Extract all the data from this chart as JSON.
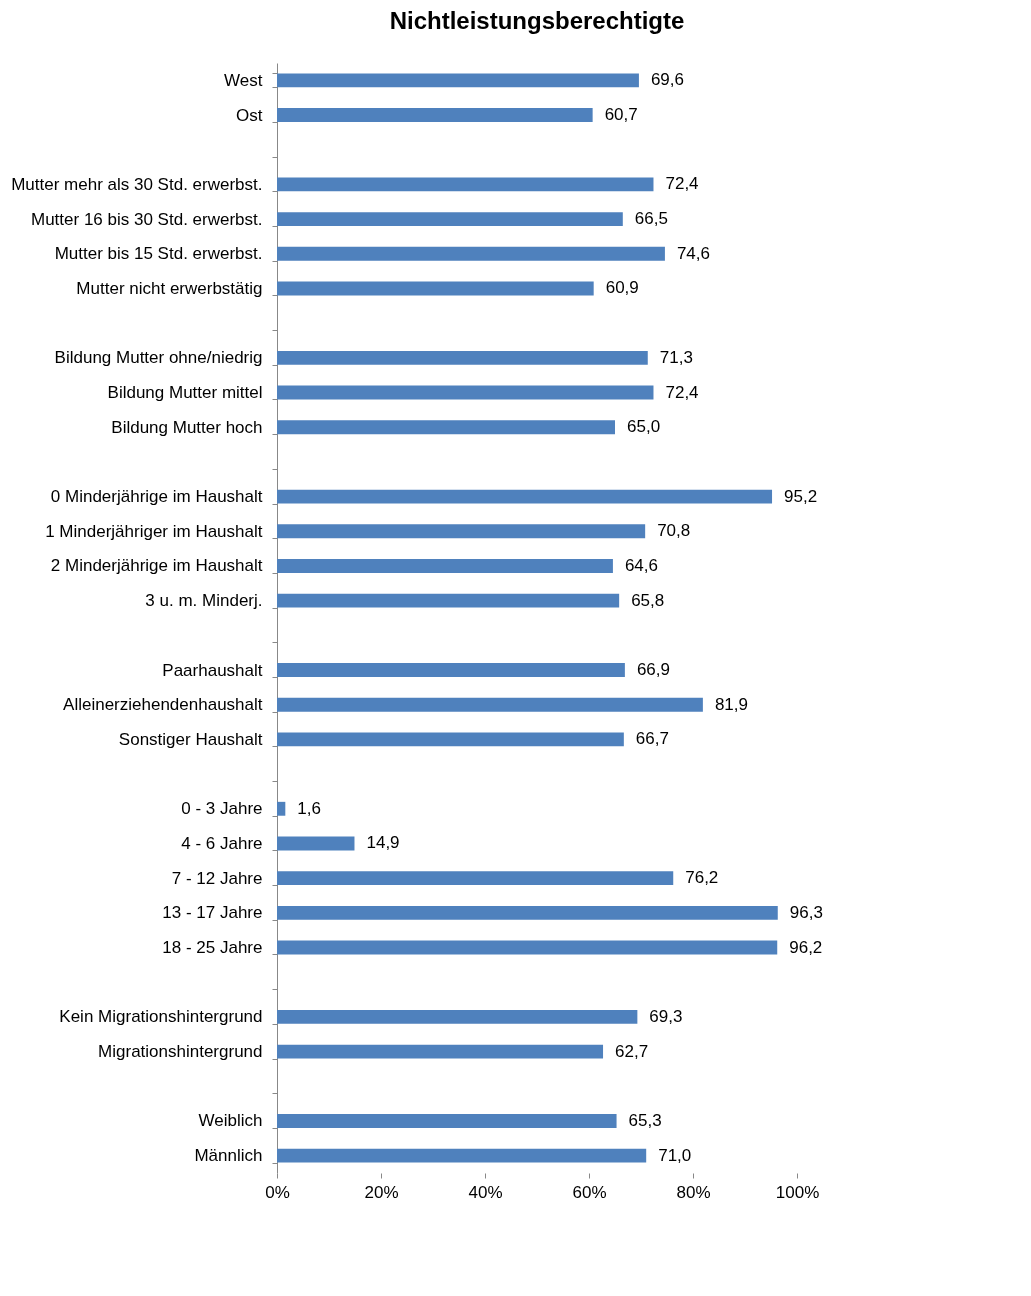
{
  "chart_data": {
    "type": "bar",
    "orientation": "horizontal",
    "title": "Nichtleistungsberechtigte",
    "categories": [
      "West",
      "Ost",
      null,
      "Mutter mehr als 30 Std. erwerbst.",
      "Mutter 16 bis 30 Std. erwerbst.",
      "Mutter bis 15 Std. erwerbst.",
      "Mutter nicht erwerbstätig",
      null,
      "Bildung Mutter ohne/niedrig",
      "Bildung Mutter mittel",
      "Bildung Mutter hoch",
      null,
      "0 Minderjährige im Haushalt",
      "1 Minderjähriger im Haushalt",
      "2 Minderjährige im Haushalt",
      "3 u. m. Minderj.",
      null,
      "Paarhaushalt",
      "Alleinerziehendenhaushalt",
      "Sonstiger Haushalt",
      null,
      "0 - 3 Jahre",
      "4 - 6 Jahre",
      "7 - 12 Jahre",
      "13 - 17 Jahre",
      "18 - 25 Jahre",
      null,
      "Kein Migrationshintergrund",
      "Migrationshintergrund",
      null,
      "Weiblich",
      "Männlich"
    ],
    "values": [
      69.6,
      60.7,
      null,
      72.4,
      66.5,
      74.6,
      60.9,
      null,
      71.3,
      72.4,
      65.0,
      null,
      95.2,
      70.8,
      64.6,
      65.8,
      null,
      66.9,
      81.9,
      66.7,
      null,
      1.6,
      14.9,
      76.2,
      96.3,
      96.2,
      null,
      69.3,
      62.7,
      null,
      65.3,
      71.0
    ],
    "value_labels": [
      "69,6",
      "60,7",
      null,
      "72,4",
      "66,5",
      "74,6",
      "60,9",
      null,
      "71,3",
      "72,4",
      "65,0",
      null,
      "95,2",
      "70,8",
      "64,6",
      "65,8",
      null,
      "66,9",
      "81,9",
      "66,7",
      null,
      "1,6",
      "14,9",
      "76,2",
      "96,3",
      "96,2",
      null,
      "69,3",
      "62,7",
      null,
      "65,3",
      "71,0"
    ],
    "color": "#4f81bd",
    "xlim": [
      0,
      100
    ],
    "xticks": [
      {
        "value": 0,
        "label": "0%"
      },
      {
        "value": 20,
        "label": "20%"
      },
      {
        "value": 40,
        "label": "40%"
      },
      {
        "value": 60,
        "label": "60%"
      },
      {
        "value": 80,
        "label": "80%"
      },
      {
        "value": 100,
        "label": "100%"
      }
    ],
    "grid": false
  }
}
